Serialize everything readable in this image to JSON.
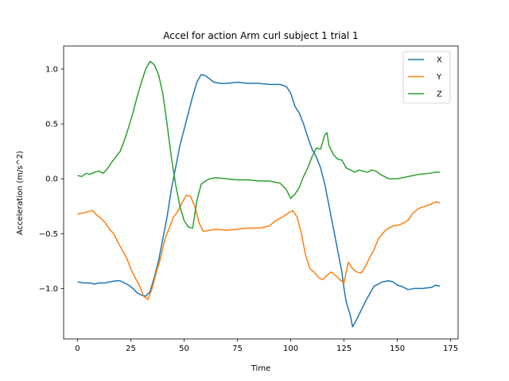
{
  "chart_data": {
    "type": "line",
    "title": "Accel for action Arm curl subject 1 trial 1",
    "xlabel": "Time",
    "ylabel": "Acceleration (m/s^2)",
    "xlim": [
      -6.5,
      178.5
    ],
    "ylim": [
      -1.46,
      1.21
    ],
    "xticks": [
      0,
      25,
      50,
      75,
      100,
      125,
      150,
      175
    ],
    "yticks": [
      -1.0,
      -0.5,
      0.0,
      0.5,
      1.0
    ],
    "ytick_labels": [
      "−1.0",
      "−0.5",
      "0.0",
      "0.5",
      "1.0"
    ],
    "grid": false,
    "legend": "top-right",
    "series": [
      {
        "name": "X",
        "color": "#1f77b4",
        "points": [
          [
            0,
            -0.94
          ],
          [
            3,
            -0.95
          ],
          [
            6,
            -0.95
          ],
          [
            8,
            -0.96
          ],
          [
            10,
            -0.95
          ],
          [
            13,
            -0.95
          ],
          [
            15,
            -0.94
          ],
          [
            18,
            -0.93
          ],
          [
            20,
            -0.93
          ],
          [
            22,
            -0.95
          ],
          [
            24,
            -0.97
          ],
          [
            26,
            -1.0
          ],
          [
            28,
            -1.04
          ],
          [
            30,
            -1.06
          ],
          [
            32,
            -1.07
          ],
          [
            34,
            -1.03
          ],
          [
            36,
            -0.9
          ],
          [
            38,
            -0.75
          ],
          [
            40,
            -0.55
          ],
          [
            42,
            -0.35
          ],
          [
            44,
            -0.1
          ],
          [
            46,
            0.1
          ],
          [
            48,
            0.3
          ],
          [
            50,
            0.45
          ],
          [
            52,
            0.6
          ],
          [
            54,
            0.75
          ],
          [
            56,
            0.88
          ],
          [
            58,
            0.95
          ],
          [
            60,
            0.94
          ],
          [
            62,
            0.91
          ],
          [
            64,
            0.88
          ],
          [
            67,
            0.87
          ],
          [
            70,
            0.87
          ],
          [
            75,
            0.88
          ],
          [
            80,
            0.87
          ],
          [
            85,
            0.87
          ],
          [
            90,
            0.86
          ],
          [
            95,
            0.86
          ],
          [
            98,
            0.84
          ],
          [
            100,
            0.78
          ],
          [
            102,
            0.66
          ],
          [
            104,
            0.6
          ],
          [
            106,
            0.5
          ],
          [
            108,
            0.38
          ],
          [
            110,
            0.27
          ],
          [
            112,
            0.2
          ],
          [
            114,
            0.1
          ],
          [
            116,
            -0.05
          ],
          [
            118,
            -0.25
          ],
          [
            120,
            -0.45
          ],
          [
            122,
            -0.65
          ],
          [
            124,
            -0.85
          ],
          [
            125,
            -1.0
          ],
          [
            126,
            -1.12
          ],
          [
            128,
            -1.25
          ],
          [
            129,
            -1.35
          ],
          [
            131,
            -1.28
          ],
          [
            133,
            -1.2
          ],
          [
            135,
            -1.12
          ],
          [
            137,
            -1.05
          ],
          [
            139,
            -0.98
          ],
          [
            141,
            -0.96
          ],
          [
            143,
            -0.94
          ],
          [
            146,
            -0.93
          ],
          [
            148,
            -0.94
          ],
          [
            150,
            -0.97
          ],
          [
            152,
            -0.98
          ],
          [
            155,
            -1.01
          ],
          [
            158,
            -1.0
          ],
          [
            162,
            -1.0
          ],
          [
            166,
            -0.99
          ],
          [
            168,
            -0.97
          ],
          [
            170,
            -0.98
          ]
        ]
      },
      {
        "name": "Y",
        "color": "#ff7f0e",
        "points": [
          [
            0,
            -0.32
          ],
          [
            3,
            -0.31
          ],
          [
            5,
            -0.3
          ],
          [
            7,
            -0.29
          ],
          [
            9,
            -0.33
          ],
          [
            11,
            -0.36
          ],
          [
            13,
            -0.4
          ],
          [
            15,
            -0.46
          ],
          [
            17,
            -0.5
          ],
          [
            19,
            -0.58
          ],
          [
            21,
            -0.65
          ],
          [
            23,
            -0.72
          ],
          [
            25,
            -0.82
          ],
          [
            27,
            -0.9
          ],
          [
            29,
            -0.97
          ],
          [
            31,
            -1.07
          ],
          [
            33,
            -1.1
          ],
          [
            35,
            -1.0
          ],
          [
            37,
            -0.85
          ],
          [
            39,
            -0.72
          ],
          [
            41,
            -0.55
          ],
          [
            43,
            -0.45
          ],
          [
            45,
            -0.35
          ],
          [
            47,
            -0.3
          ],
          [
            49,
            -0.22
          ],
          [
            51,
            -0.15
          ],
          [
            53,
            -0.16
          ],
          [
            55,
            -0.25
          ],
          [
            57,
            -0.4
          ],
          [
            59,
            -0.48
          ],
          [
            62,
            -0.47
          ],
          [
            65,
            -0.46
          ],
          [
            70,
            -0.47
          ],
          [
            75,
            -0.46
          ],
          [
            80,
            -0.45
          ],
          [
            85,
            -0.45
          ],
          [
            88,
            -0.44
          ],
          [
            90,
            -0.43
          ],
          [
            93,
            -0.38
          ],
          [
            96,
            -0.35
          ],
          [
            99,
            -0.31
          ],
          [
            101,
            -0.29
          ],
          [
            103,
            -0.35
          ],
          [
            105,
            -0.5
          ],
          [
            107,
            -0.7
          ],
          [
            109,
            -0.82
          ],
          [
            111,
            -0.85
          ],
          [
            113,
            -0.9
          ],
          [
            115,
            -0.92
          ],
          [
            117,
            -0.88
          ],
          [
            119,
            -0.85
          ],
          [
            121,
            -0.88
          ],
          [
            123,
            -0.92
          ],
          [
            125,
            -0.95
          ],
          [
            126,
            -0.85
          ],
          [
            127,
            -0.76
          ],
          [
            129,
            -0.82
          ],
          [
            131,
            -0.85
          ],
          [
            133,
            -0.86
          ],
          [
            135,
            -0.8
          ],
          [
            137,
            -0.72
          ],
          [
            139,
            -0.65
          ],
          [
            141,
            -0.55
          ],
          [
            143,
            -0.5
          ],
          [
            145,
            -0.46
          ],
          [
            148,
            -0.43
          ],
          [
            151,
            -0.42
          ],
          [
            153,
            -0.4
          ],
          [
            155,
            -0.38
          ],
          [
            157,
            -0.32
          ],
          [
            160,
            -0.27
          ],
          [
            163,
            -0.25
          ],
          [
            166,
            -0.23
          ],
          [
            168,
            -0.21
          ],
          [
            170,
            -0.22
          ]
        ]
      },
      {
        "name": "Z",
        "color": "#2ca02c",
        "points": [
          [
            0,
            0.03
          ],
          [
            2,
            0.02
          ],
          [
            4,
            0.05
          ],
          [
            6,
            0.04
          ],
          [
            8,
            0.06
          ],
          [
            10,
            0.07
          ],
          [
            12,
            0.05
          ],
          [
            14,
            0.09
          ],
          [
            16,
            0.15
          ],
          [
            18,
            0.2
          ],
          [
            20,
            0.25
          ],
          [
            22,
            0.35
          ],
          [
            24,
            0.47
          ],
          [
            26,
            0.6
          ],
          [
            28,
            0.75
          ],
          [
            30,
            0.88
          ],
          [
            32,
            1.0
          ],
          [
            34,
            1.07
          ],
          [
            36,
            1.04
          ],
          [
            38,
            0.95
          ],
          [
            40,
            0.78
          ],
          [
            42,
            0.5
          ],
          [
            44,
            0.2
          ],
          [
            46,
            -0.05
          ],
          [
            48,
            -0.25
          ],
          [
            50,
            -0.38
          ],
          [
            52,
            -0.44
          ],
          [
            54,
            -0.45
          ],
          [
            56,
            -0.2
          ],
          [
            58,
            -0.05
          ],
          [
            60,
            -0.02
          ],
          [
            62,
            0.0
          ],
          [
            65,
            0.01
          ],
          [
            70,
            0.0
          ],
          [
            75,
            -0.01
          ],
          [
            80,
            -0.01
          ],
          [
            85,
            -0.02
          ],
          [
            90,
            -0.02
          ],
          [
            95,
            -0.04
          ],
          [
            98,
            -0.1
          ],
          [
            100,
            -0.18
          ],
          [
            102,
            -0.14
          ],
          [
            104,
            -0.08
          ],
          [
            106,
            0.02
          ],
          [
            108,
            0.1
          ],
          [
            110,
            0.2
          ],
          [
            112,
            0.28
          ],
          [
            114,
            0.27
          ],
          [
            116,
            0.4
          ],
          [
            117,
            0.42
          ],
          [
            118,
            0.3
          ],
          [
            120,
            0.22
          ],
          [
            122,
            0.18
          ],
          [
            124,
            0.17
          ],
          [
            126,
            0.1
          ],
          [
            128,
            0.08
          ],
          [
            130,
            0.06
          ],
          [
            132,
            0.08
          ],
          [
            134,
            0.07
          ],
          [
            136,
            0.06
          ],
          [
            138,
            0.08
          ],
          [
            140,
            0.07
          ],
          [
            142,
            0.04
          ],
          [
            144,
            0.02
          ],
          [
            146,
            0.0
          ],
          [
            150,
            0.0
          ],
          [
            155,
            0.02
          ],
          [
            160,
            0.04
          ],
          [
            165,
            0.05
          ],
          [
            168,
            0.06
          ],
          [
            170,
            0.06
          ]
        ]
      }
    ]
  }
}
